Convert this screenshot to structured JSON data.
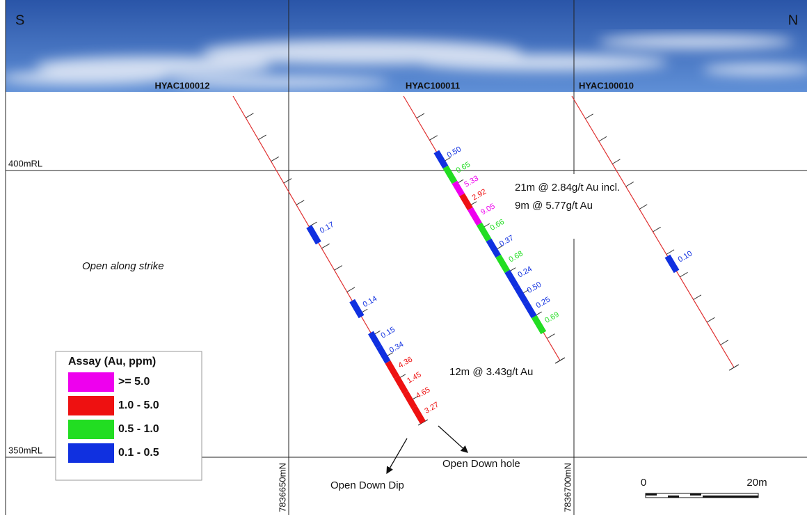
{
  "orientation": {
    "left": "S",
    "right": "N"
  },
  "holes": [
    {
      "name": "HYAC100012",
      "intervals": [
        {
          "label": "0.17",
          "color": "#1030e0"
        },
        {
          "label": "0.14",
          "color": "#1030e0"
        },
        {
          "label": "0.15",
          "color": "#1030e0"
        },
        {
          "label": "0.34",
          "color": "#1030e0"
        },
        {
          "label": "4.36",
          "color": "#ee1111"
        },
        {
          "label": "1.45",
          "color": "#ee1111"
        },
        {
          "label": "4.65",
          "color": "#ee1111"
        },
        {
          "label": "3.27",
          "color": "#ee1111"
        }
      ]
    },
    {
      "name": "HYAC100011",
      "intervals": [
        {
          "label": "0.50",
          "color": "#1030e0"
        },
        {
          "label": "0.65",
          "color": "#22dd22"
        },
        {
          "label": "5.33",
          "color": "#ee00ee"
        },
        {
          "label": "2.92",
          "color": "#ee1111"
        },
        {
          "label": "9.05",
          "color": "#ee00ee"
        },
        {
          "label": "0.66",
          "color": "#22dd22"
        },
        {
          "label": "0.37",
          "color": "#1030e0"
        },
        {
          "label": "0.68",
          "color": "#22dd22"
        },
        {
          "label": "0.24",
          "color": "#1030e0"
        },
        {
          "label": "0.50",
          "color": "#1030e0"
        },
        {
          "label": "0.25",
          "color": "#1030e0"
        },
        {
          "label": "0.69",
          "color": "#22dd22"
        }
      ]
    },
    {
      "name": "HYAC100010",
      "intervals": [
        {
          "label": "0.10",
          "color": "#1030e0"
        }
      ]
    }
  ],
  "levels": [
    "400mRL",
    "350mRL"
  ],
  "northings": [
    "7836650mN",
    "7836700mN"
  ],
  "annotations": {
    "intercept_main": "21m @ 2.84g/t Au incl.",
    "intercept_incl": "9m @ 5.77g/t Au",
    "intercept_south": "12m @ 3.43g/t Au",
    "strike": "Open along strike",
    "down_hole": "Open Down hole",
    "down_dip": "Open Down Dip"
  },
  "legend": {
    "title": "Assay (Au, ppm)",
    "items": [
      {
        "label": ">= 5.0",
        "color": "#ee00ee"
      },
      {
        "label": "1.0 - 5.0",
        "color": "#ee1111"
      },
      {
        "label": "0.5 - 1.0",
        "color": "#22dd22"
      },
      {
        "label": "0.1 - 0.5",
        "color": "#1030e0"
      }
    ]
  },
  "scale": {
    "start": "0",
    "end": "20m"
  }
}
